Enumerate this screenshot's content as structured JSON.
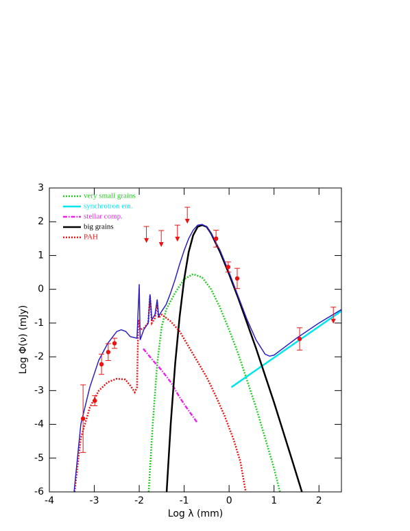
{
  "chart_data": {
    "type": "line",
    "xlabel": "Log λ (mm)",
    "ylabel": "Log Φ(ν) (mJy)",
    "xlim": [
      -4,
      2.5
    ],
    "ylim": [
      -6,
      3
    ],
    "xticks": [
      -4,
      -3,
      -2,
      -1,
      0,
      1,
      2
    ],
    "yticks": [
      -6,
      -5,
      -4,
      -3,
      -2,
      -1,
      0,
      1,
      2,
      3
    ],
    "legend": "upper left",
    "series": [
      {
        "name": "very small grains",
        "color": "#22cc22",
        "style": "dotted",
        "x": [
          -1.79,
          -1.7,
          -1.6,
          -1.5,
          -1.4,
          -1.2,
          -1.0,
          -0.8,
          -0.6,
          -0.4,
          -0.2,
          0,
          0.2,
          0.4,
          0.6,
          0.8,
          1.0,
          1.13
        ],
        "values": [
          -6,
          -4,
          -2.2,
          -1.1,
          -0.6,
          -0.1,
          0.3,
          0.45,
          0.35,
          0,
          -0.55,
          -1.2,
          -1.9,
          -2.7,
          -3.5,
          -4.4,
          -5.3,
          -6
        ]
      },
      {
        "name": "synchrotron em.",
        "color": "#00e5ee",
        "style": "solid",
        "x": [
          0.05,
          2.5
        ],
        "values": [
          -2.9,
          -0.64
        ]
      },
      {
        "name": "stellar comp.",
        "color": "#ee22ee",
        "style": "dashdot",
        "x": [
          -1.91,
          -1.7,
          -1.5,
          -1.3,
          -1.1,
          -0.95,
          -0.72
        ],
        "values": [
          -1.76,
          -2.1,
          -2.4,
          -2.75,
          -3.2,
          -3.5,
          -3.93
        ]
      },
      {
        "name": "big grains",
        "color": "#000000",
        "style": "solid",
        "x": [
          -1.39,
          -1.3,
          -1.2,
          -1.1,
          -1.0,
          -0.9,
          -0.8,
          -0.7,
          -0.6,
          -0.5,
          -0.4,
          -0.2,
          0,
          0.2,
          0.4,
          0.6,
          0.8,
          1.0,
          1.2,
          1.4,
          1.62
        ],
        "values": [
          -6,
          -4,
          -2.2,
          -0.8,
          0.3,
          1.1,
          1.6,
          1.85,
          1.9,
          1.85,
          1.65,
          1.1,
          0.45,
          -0.25,
          -1.0,
          -1.75,
          -2.55,
          -3.35,
          -4.2,
          -5.05,
          -6
        ]
      },
      {
        "name": "PAH",
        "color": "#ee1111",
        "style": "dotted",
        "x": [
          -3.44,
          -3.3,
          -3.1,
          -2.9,
          -2.7,
          -2.5,
          -2.31,
          -2.2,
          -2.1,
          -2.05,
          -2.02,
          -1.98,
          -1.9,
          -1.8,
          -1.76,
          -1.72,
          -1.65,
          -1.6,
          -1.57,
          -1.5,
          -1.3,
          -1.1,
          -0.9,
          -0.7,
          -0.5,
          -0.3,
          -0.1,
          0.1,
          0.25,
          0.37
        ],
        "values": [
          -6,
          -4.4,
          -3.5,
          -3.0,
          -2.75,
          -2.65,
          -2.67,
          -2.85,
          -3.05,
          -2.9,
          -0.9,
          -1.2,
          -1.15,
          -1.0,
          -0.2,
          -1.0,
          -0.85,
          -0.4,
          -0.85,
          -0.75,
          -0.95,
          -1.25,
          -1.7,
          -2.15,
          -2.6,
          -3.15,
          -3.75,
          -4.45,
          -5.1,
          -6
        ]
      },
      {
        "color": "#2a1fc9",
        "style": "solid",
        "x": [
          -3.45,
          -3.3,
          -3.1,
          -2.9,
          -2.7,
          -2.5,
          -2.4,
          -2.3,
          -2.2,
          -2.05,
          -2.0,
          -1.98,
          -1.9,
          -1.8,
          -1.76,
          -1.72,
          -1.65,
          -1.6,
          -1.57,
          -1.5,
          -1.4,
          -1.3,
          -1.2,
          -1.1,
          -1.0,
          -0.9,
          -0.8,
          -0.7,
          -0.6,
          -0.5,
          -0.4,
          -0.2,
          0,
          0.2,
          0.4,
          0.6,
          0.8,
          0.9,
          1.0,
          1.5,
          2.0,
          2.5
        ],
        "values": [
          -6,
          -4.0,
          -2.9,
          -2.1,
          -1.6,
          -1.25,
          -1.2,
          -1.25,
          -1.4,
          -1.45,
          0.15,
          -1.5,
          -1.2,
          -1.0,
          -0.15,
          -0.9,
          -0.75,
          -0.3,
          -0.8,
          -0.65,
          -0.45,
          -0.1,
          0.3,
          0.75,
          1.15,
          1.5,
          1.75,
          1.9,
          1.92,
          1.85,
          1.65,
          1.15,
          0.5,
          -0.2,
          -0.9,
          -1.5,
          -1.92,
          -1.98,
          -1.95,
          -1.45,
          -1.0,
          -0.6
        ]
      }
    ],
    "observations": {
      "color": "#ee1111",
      "x": [
        -3.25,
        -2.99,
        -2.84,
        -2.69,
        -2.55,
        -0.29,
        -0.02,
        0.18,
        1.57
      ],
      "values": [
        -3.83,
        -3.3,
        -2.22,
        -1.86,
        -1.6,
        1.5,
        0.66,
        0.32,
        -1.47
      ],
      "errors": [
        1.0,
        0.15,
        0.3,
        0.25,
        0.15,
        0.25,
        0.15,
        0.3,
        0.33
      ]
    },
    "upper_limits": {
      "color": "#ee1111",
      "x": [
        -1.84,
        -1.51,
        -1.15,
        -0.93,
        2.32
      ],
      "values": [
        1.86,
        1.74,
        1.9,
        2.43,
        -0.53
      ]
    }
  }
}
